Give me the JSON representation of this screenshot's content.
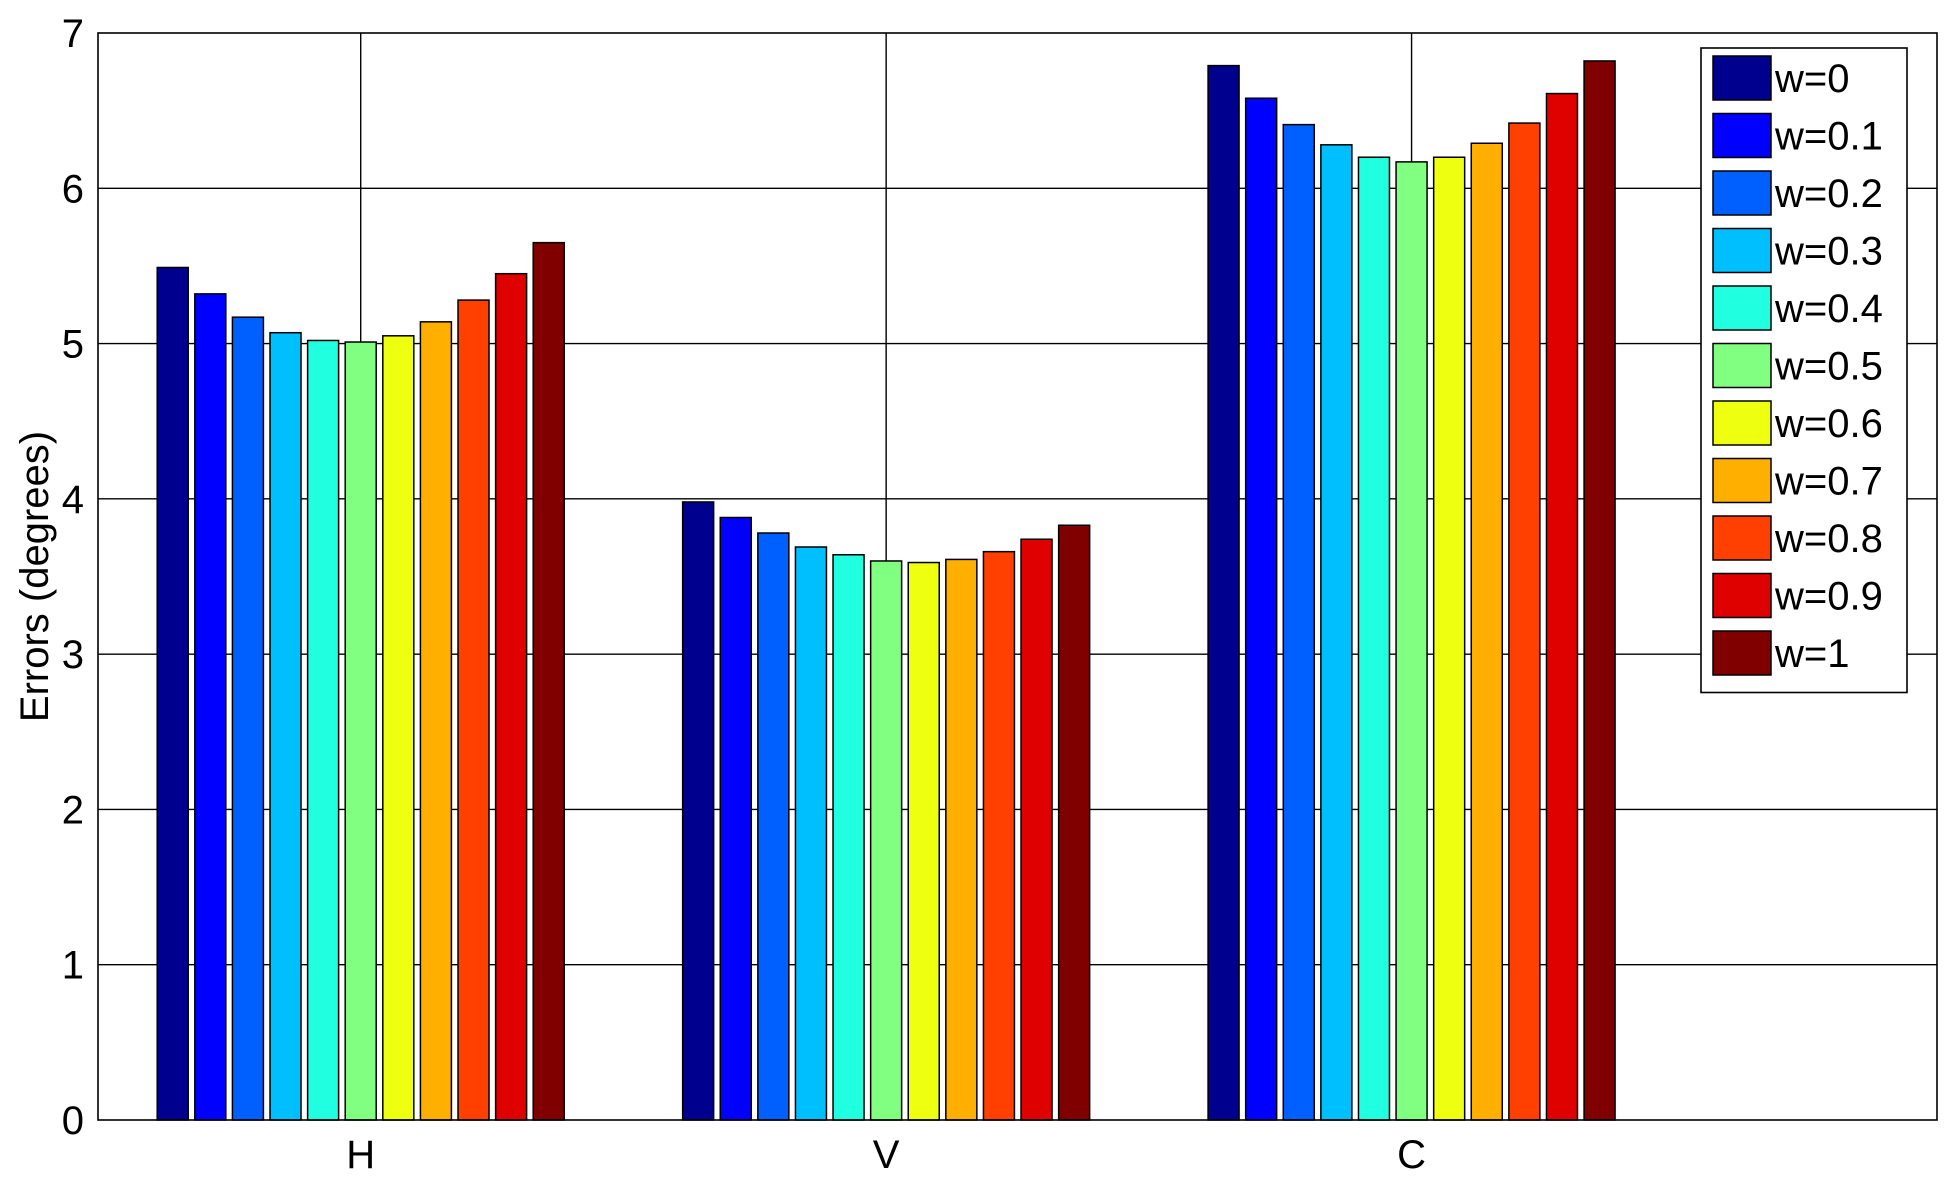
{
  "chart_data": {
    "type": "bar",
    "title": "",
    "xlabel": "",
    "ylabel": "Errors (degrees)",
    "ylim": [
      0,
      7
    ],
    "yticks": [
      "0",
      "1",
      "2",
      "3",
      "4",
      "5",
      "6",
      "7"
    ],
    "categories": [
      "H",
      "V",
      "C"
    ],
    "grid": true,
    "legend_position": "top-right",
    "series": [
      {
        "name": "w=0",
        "color": "#00008F",
        "values": [
          5.49,
          3.98,
          6.79
        ]
      },
      {
        "name": "w=0.1",
        "color": "#0000FF",
        "values": [
          5.32,
          3.88,
          6.58
        ]
      },
      {
        "name": "w=0.2",
        "color": "#0060FF",
        "values": [
          5.17,
          3.78,
          6.41
        ]
      },
      {
        "name": "w=0.3",
        "color": "#00BFFF",
        "values": [
          5.07,
          3.69,
          6.28
        ]
      },
      {
        "name": "w=0.4",
        "color": "#20FFDF",
        "values": [
          5.02,
          3.64,
          6.2
        ]
      },
      {
        "name": "w=0.5",
        "color": "#80FF80",
        "values": [
          5.01,
          3.6,
          6.17
        ]
      },
      {
        "name": "w=0.6",
        "color": "#EFFF10",
        "values": [
          5.05,
          3.59,
          6.2
        ]
      },
      {
        "name": "w=0.7",
        "color": "#FFAF00",
        "values": [
          5.14,
          3.61,
          6.29
        ]
      },
      {
        "name": "w=0.8",
        "color": "#FF4000",
        "values": [
          5.28,
          3.66,
          6.42
        ]
      },
      {
        "name": "w=0.9",
        "color": "#DF0000",
        "values": [
          5.45,
          3.74,
          6.61
        ]
      },
      {
        "name": "w=1",
        "color": "#800000",
        "values": [
          5.65,
          3.83,
          6.82
        ]
      }
    ]
  }
}
